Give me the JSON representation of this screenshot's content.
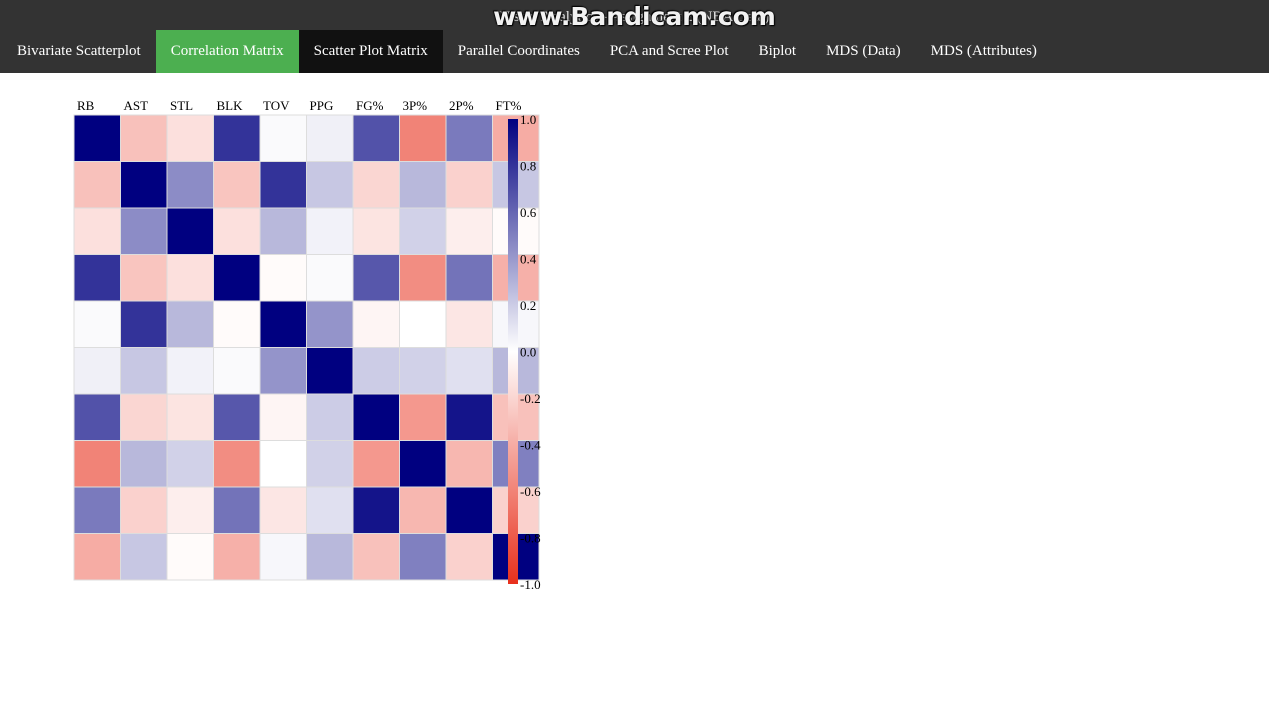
{
  "app": {
    "title": "Visual Analytics - Assignment 2 (NBA Data)",
    "watermark": "www.Bandicam.com"
  },
  "nav": {
    "items": [
      {
        "label": "Bivariate Scatterplot",
        "name": "nav-bivariate-scatterplot",
        "state": ""
      },
      {
        "label": "Correlation Matrix",
        "name": "nav-correlation-matrix",
        "state": "active"
      },
      {
        "label": "Scatter Plot Matrix",
        "name": "nav-scatter-plot-matrix",
        "state": "current"
      },
      {
        "label": "Parallel Coordinates",
        "name": "nav-parallel-coordinates",
        "state": ""
      },
      {
        "label": "PCA and Scree Plot",
        "name": "nav-pca-scree-plot",
        "state": ""
      },
      {
        "label": "Biplot",
        "name": "nav-biplot",
        "state": ""
      },
      {
        "label": "MDS (Data)",
        "name": "nav-mds-data",
        "state": ""
      },
      {
        "label": "MDS (Attributes)",
        "name": "nav-mds-attributes",
        "state": ""
      }
    ]
  },
  "chart_data": {
    "type": "heatmap",
    "title": "",
    "variables": [
      "RB",
      "AST",
      "STL",
      "BLK",
      "TOV",
      "PPG",
      "FG%",
      "3P%",
      "2P%",
      "FT%"
    ],
    "matrix": [
      [
        1.0,
        -0.3,
        -0.15,
        0.8,
        0.02,
        0.06,
        0.68,
        -0.6,
        0.52,
        -0.4
      ],
      [
        -0.3,
        1.0,
        0.45,
        -0.28,
        0.8,
        0.22,
        -0.2,
        0.28,
        -0.22,
        0.22
      ],
      [
        -0.15,
        0.45,
        1.0,
        -0.15,
        0.28,
        0.05,
        -0.13,
        0.18,
        -0.08,
        -0.02
      ],
      [
        0.8,
        -0.28,
        -0.15,
        1.0,
        -0.02,
        0.02,
        0.66,
        -0.55,
        0.55,
        -0.38
      ],
      [
        0.02,
        0.8,
        0.28,
        -0.02,
        1.0,
        0.42,
        -0.05,
        0.0,
        -0.12,
        0.03
      ],
      [
        0.06,
        0.22,
        0.05,
        0.02,
        0.42,
        1.0,
        0.2,
        0.18,
        0.12,
        0.28
      ],
      [
        0.68,
        -0.2,
        -0.13,
        0.66,
        -0.05,
        0.2,
        1.0,
        -0.5,
        0.92,
        -0.3
      ],
      [
        -0.6,
        0.28,
        0.18,
        -0.55,
        0.0,
        0.18,
        -0.5,
        1.0,
        -0.35,
        0.5
      ],
      [
        0.52,
        -0.22,
        -0.08,
        0.55,
        -0.12,
        0.12,
        0.92,
        -0.35,
        1.0,
        -0.22
      ],
      [
        -0.4,
        0.22,
        -0.02,
        -0.38,
        0.03,
        0.28,
        -0.3,
        0.5,
        -0.22,
        1.0
      ]
    ],
    "colorscale": {
      "min": -1.0,
      "max": 1.0,
      "low": "#e8301c",
      "mid": "#ffffff",
      "high": "#000080"
    },
    "legend_ticks": [
      "1.0",
      "0.8",
      "0.6",
      "0.4",
      "0.2",
      "0.0",
      "-0.2",
      "-0.4",
      "-0.6",
      "-0.8",
      "-1.0"
    ],
    "legend_position": "right"
  }
}
